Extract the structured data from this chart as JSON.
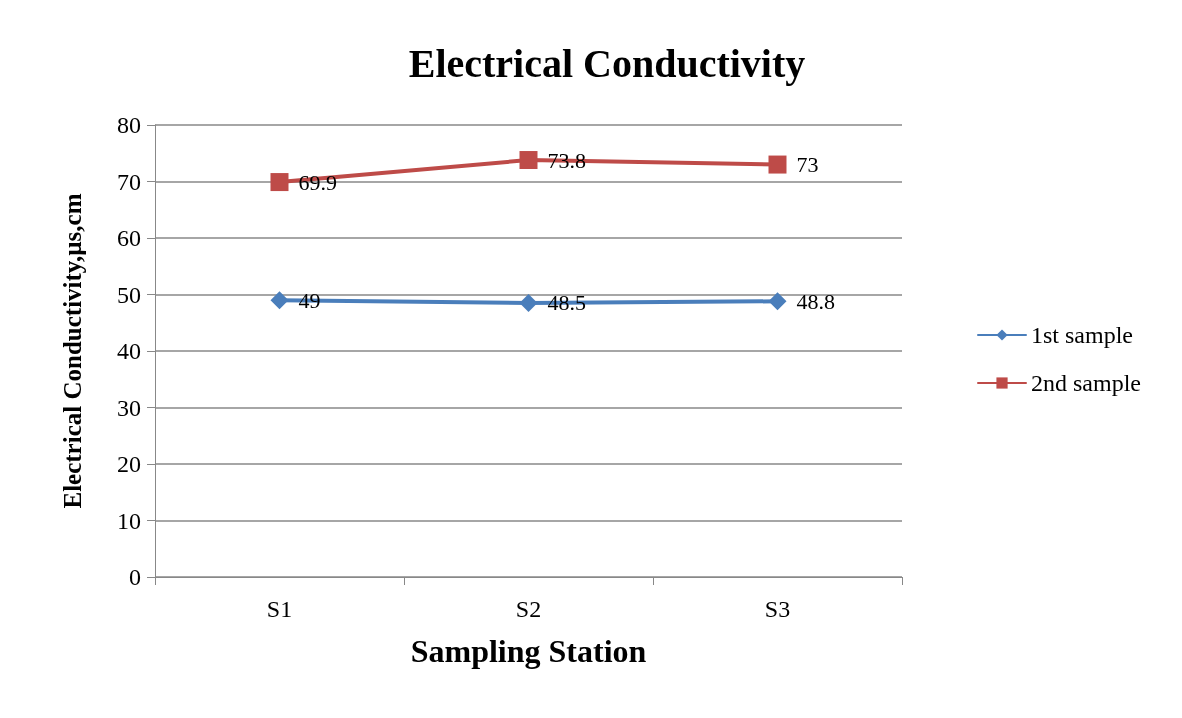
{
  "chart_data": {
    "type": "line",
    "title": "Electrical Conductivity",
    "xlabel": "Sampling Station",
    "ylabel": "Electrical Conductivity,µs,cm",
    "categories": [
      "S1",
      "S2",
      "S3"
    ],
    "series": [
      {
        "name": "1st sample",
        "color": "#4a7ebb",
        "marker": "diamond",
        "values": [
          49,
          48.5,
          48.8
        ]
      },
      {
        "name": "2nd sample",
        "color": "#be4b48",
        "marker": "square",
        "values": [
          69.9,
          73.8,
          73
        ]
      }
    ],
    "ylim": [
      0,
      80
    ],
    "yticks": [
      0,
      10,
      20,
      30,
      40,
      50,
      60,
      70,
      80
    ],
    "grid": "y",
    "legend": "right",
    "data_labels": true,
    "line_style": "solid"
  }
}
